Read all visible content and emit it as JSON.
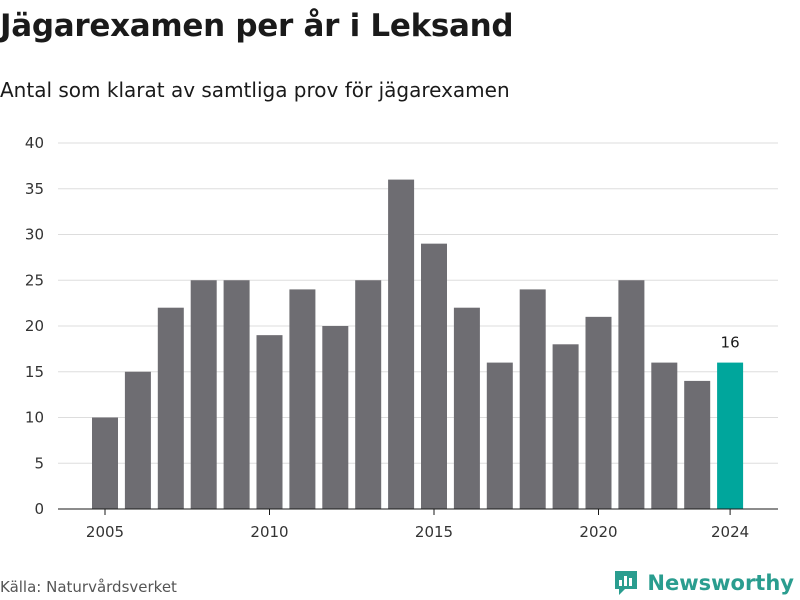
{
  "header": {
    "title": "Jägarexamen per år i Leksand",
    "subtitle": "Antal som klarat av samtliga prov för jägarexamen"
  },
  "footer": {
    "source": "Källa: Naturvårdsverket",
    "brand": "Newsworthy"
  },
  "colors": {
    "bar": "#6e6d72",
    "highlight": "#00a69c",
    "grid": "#dddddd",
    "brand": "#2a9d8f"
  },
  "chart_data": {
    "type": "bar",
    "categories": [
      2005,
      2006,
      2007,
      2008,
      2009,
      2010,
      2011,
      2012,
      2013,
      2014,
      2015,
      2016,
      2017,
      2018,
      2019,
      2020,
      2021,
      2022,
      2023,
      2024
    ],
    "values": [
      10,
      15,
      22,
      25,
      25,
      19,
      24,
      20,
      25,
      36,
      29,
      22,
      16,
      24,
      18,
      21,
      25,
      16,
      14,
      16
    ],
    "x_tick_labels": [
      "2005",
      "2010",
      "2015",
      "2020",
      "2024"
    ],
    "y_ticks": [
      0,
      5,
      10,
      15,
      20,
      25,
      30,
      35,
      40
    ],
    "ylim": [
      0,
      40
    ],
    "highlight_category": 2024,
    "highlight_label": "16",
    "grid": true
  }
}
